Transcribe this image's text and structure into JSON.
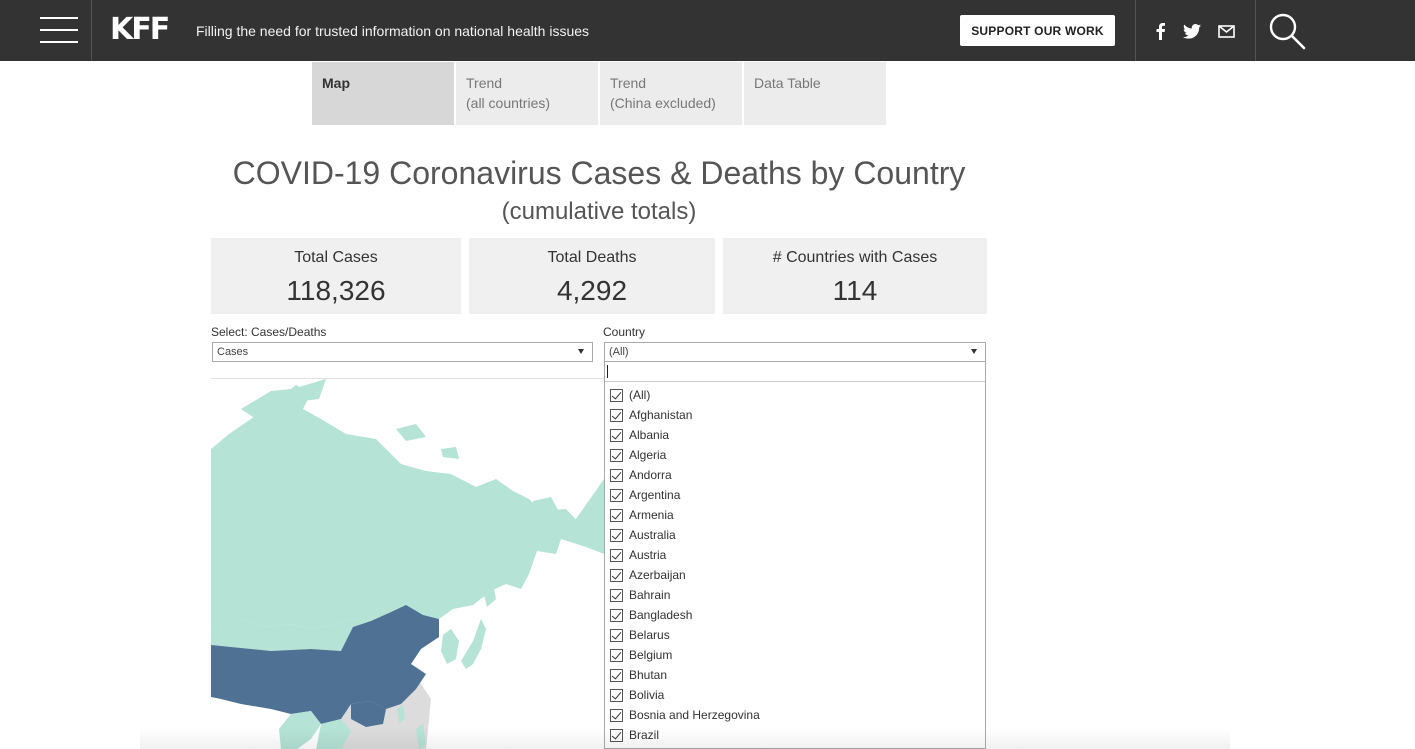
{
  "header": {
    "logo": "KFF",
    "tagline": "Filling the need for trusted information on national health issues",
    "support_label": "SUPPORT OUR WORK"
  },
  "tabs": [
    {
      "label": "Map",
      "sub": ""
    },
    {
      "label": "Trend",
      "sub": "(all countries)"
    },
    {
      "label": "Trend",
      "sub": "(China excluded)"
    },
    {
      "label": "Data Table",
      "sub": ""
    }
  ],
  "page": {
    "title": "COVID-19 Coronavirus Cases & Deaths by Country",
    "subtitle": "(cumulative totals)"
  },
  "kpis": {
    "cases": {
      "label": "Total Cases",
      "value": "118,326"
    },
    "deaths": {
      "label": "Total Deaths",
      "value": "4,292"
    },
    "countries": {
      "label": "# Countries with Cases",
      "value": "114"
    }
  },
  "filters": {
    "measure": {
      "label": "Select: Cases/Deaths",
      "value": "Cases"
    },
    "country": {
      "label": "Country",
      "value": "(All)"
    }
  },
  "country_options": [
    "(All)",
    "Afghanistan",
    "Albania",
    "Algeria",
    "Andorra",
    "Argentina",
    "Armenia",
    "Australia",
    "Austria",
    "Azerbaijan",
    "Bahrain",
    "Bangladesh",
    "Belarus",
    "Belgium",
    "Bhutan",
    "Bolivia",
    "Bosnia and Herzegovina",
    "Brazil"
  ],
  "colors": {
    "nav_bg": "#333333",
    "map_low": "#b5e3d6",
    "map_high": "#4f7193",
    "map_nodata": "#e0e0e0"
  }
}
